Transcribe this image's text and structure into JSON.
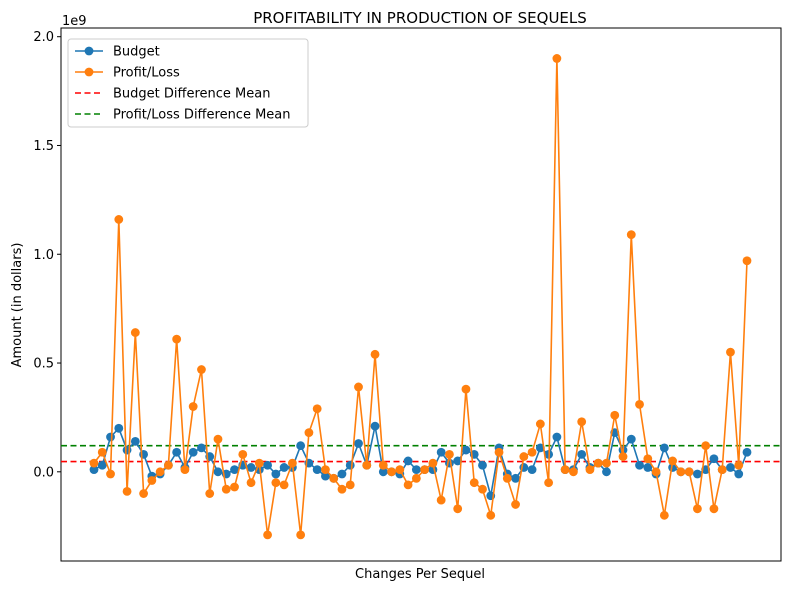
{
  "chart_data": {
    "type": "line",
    "title": "PROFITABILITY IN PRODUCTION OF SEQUELS",
    "xlabel": "Changes Per Sequel",
    "ylabel": "Amount (in dollars)",
    "y_offset_text": "1e9",
    "ylim": [
      -0.41,
      2.04
    ],
    "yticks": [
      0.0,
      0.5,
      1.0,
      1.5,
      2.0
    ],
    "ytick_labels": [
      "0.0",
      "0.5",
      "1.0",
      "1.5",
      "2.0"
    ],
    "grid": false,
    "legend_position": "upper-left",
    "series": [
      {
        "name": "Budget",
        "color": "#1f77b4",
        "marker": "circle",
        "values": [
          0.01,
          0.03,
          0.16,
          0.2,
          0.1,
          0.14,
          0.08,
          -0.02,
          -0.01,
          0.03,
          0.09,
          0.02,
          0.09,
          0.11,
          0.07,
          0.0,
          -0.01,
          0.01,
          0.03,
          0.02,
          0.01,
          0.03,
          -0.01,
          0.02,
          0.02,
          0.12,
          0.04,
          0.01,
          -0.02,
          -0.03,
          -0.01,
          0.03,
          0.13,
          0.03,
          0.21,
          0.0,
          0.0,
          -0.01,
          0.05,
          0.01,
          0.01,
          0.01,
          0.09,
          0.04,
          0.05,
          0.1,
          0.08,
          0.03,
          -0.11,
          0.11,
          -0.01,
          -0.03,
          0.02,
          0.01,
          0.11,
          0.08,
          0.16,
          0.01,
          0.01,
          0.08,
          0.02,
          0.04,
          0.0,
          0.18,
          0.1,
          0.15,
          0.03,
          0.02,
          -0.01,
          0.11,
          0.02,
          0.0,
          0.0,
          -0.01,
          0.01,
          0.06,
          0.01,
          0.02,
          -0.01,
          0.09
        ]
      },
      {
        "name": "Profit/Loss",
        "color": "#ff7f0e",
        "marker": "circle",
        "values": [
          0.04,
          0.09,
          -0.01,
          1.16,
          -0.09,
          0.64,
          -0.1,
          -0.04,
          0.0,
          0.03,
          0.61,
          0.01,
          0.3,
          0.47,
          -0.1,
          0.15,
          -0.08,
          -0.07,
          0.08,
          -0.05,
          0.04,
          -0.29,
          -0.05,
          -0.06,
          0.04,
          -0.29,
          0.18,
          0.29,
          0.01,
          -0.03,
          -0.08,
          -0.06,
          0.39,
          0.03,
          0.54,
          0.03,
          0.0,
          0.01,
          -0.06,
          -0.03,
          0.01,
          0.04,
          -0.13,
          0.08,
          -0.17,
          0.38,
          -0.05,
          -0.08,
          -0.2,
          0.09,
          -0.03,
          -0.15,
          0.07,
          0.09,
          0.22,
          -0.05,
          1.9,
          0.01,
          0.0,
          0.23,
          0.01,
          0.04,
          0.04,
          0.26,
          0.07,
          1.09,
          0.31,
          0.06,
          0.0,
          -0.2,
          0.05,
          0.0,
          0.0,
          -0.17,
          0.12,
          -0.17,
          0.01,
          0.55,
          0.03,
          0.97
        ]
      },
      {
        "name": "Budget Difference Mean",
        "color": "#ff0000",
        "style": "dashed",
        "value": 0.047
      },
      {
        "name": "Profit/Loss Difference Mean",
        "color": "#008000",
        "style": "dashed",
        "value": 0.12
      }
    ]
  }
}
